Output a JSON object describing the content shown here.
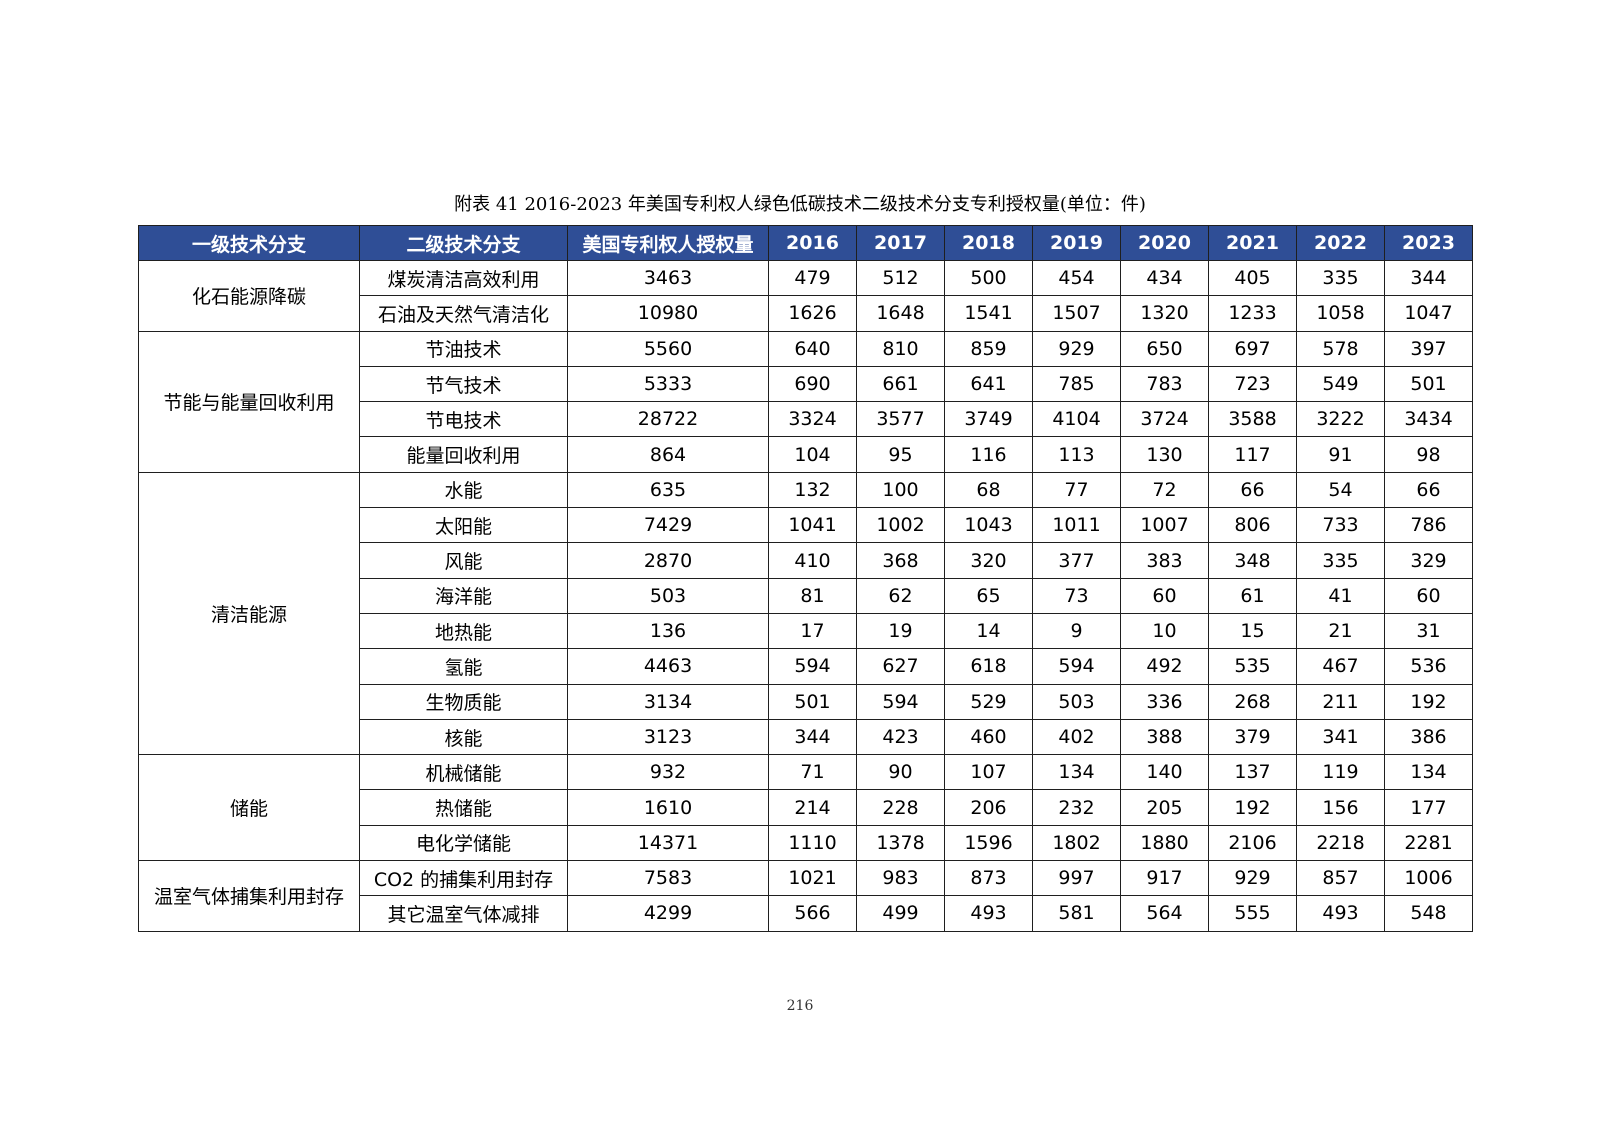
{
  "caption": "附表 41 2016-2023 年美国专利权人绿色低碳技术二级技术分支专利授权量(单位：件)",
  "headers": [
    "一级技术分支",
    "二级技术分支",
    "美国专利权人授权量",
    "2016",
    "2017",
    "2018",
    "2019",
    "2020",
    "2021",
    "2022",
    "2023"
  ],
  "groups": [
    {
      "name": "化石能源降碳",
      "rows": [
        {
          "sub": "煤炭清洁高效利用",
          "values": [
            "3463",
            "479",
            "512",
            "500",
            "454",
            "434",
            "405",
            "335",
            "344"
          ]
        },
        {
          "sub": "石油及天然气清洁化",
          "values": [
            "10980",
            "1626",
            "1648",
            "1541",
            "1507",
            "1320",
            "1233",
            "1058",
            "1047"
          ]
        }
      ]
    },
    {
      "name": "节能与能量回收利用",
      "rows": [
        {
          "sub": "节油技术",
          "values": [
            "5560",
            "640",
            "810",
            "859",
            "929",
            "650",
            "697",
            "578",
            "397"
          ]
        },
        {
          "sub": "节气技术",
          "values": [
            "5333",
            "690",
            "661",
            "641",
            "785",
            "783",
            "723",
            "549",
            "501"
          ]
        },
        {
          "sub": "节电技术",
          "values": [
            "28722",
            "3324",
            "3577",
            "3749",
            "4104",
            "3724",
            "3588",
            "3222",
            "3434"
          ]
        },
        {
          "sub": "能量回收利用",
          "values": [
            "864",
            "104",
            "95",
            "116",
            "113",
            "130",
            "117",
            "91",
            "98"
          ]
        }
      ]
    },
    {
      "name": "清洁能源",
      "rows": [
        {
          "sub": "水能",
          "values": [
            "635",
            "132",
            "100",
            "68",
            "77",
            "72",
            "66",
            "54",
            "66"
          ]
        },
        {
          "sub": "太阳能",
          "values": [
            "7429",
            "1041",
            "1002",
            "1043",
            "1011",
            "1007",
            "806",
            "733",
            "786"
          ]
        },
        {
          "sub": "风能",
          "values": [
            "2870",
            "410",
            "368",
            "320",
            "377",
            "383",
            "348",
            "335",
            "329"
          ]
        },
        {
          "sub": "海洋能",
          "values": [
            "503",
            "81",
            "62",
            "65",
            "73",
            "60",
            "61",
            "41",
            "60"
          ]
        },
        {
          "sub": "地热能",
          "values": [
            "136",
            "17",
            "19",
            "14",
            "9",
            "10",
            "15",
            "21",
            "31"
          ]
        },
        {
          "sub": "氢能",
          "values": [
            "4463",
            "594",
            "627",
            "618",
            "594",
            "492",
            "535",
            "467",
            "536"
          ]
        },
        {
          "sub": "生物质能",
          "values": [
            "3134",
            "501",
            "594",
            "529",
            "503",
            "336",
            "268",
            "211",
            "192"
          ]
        },
        {
          "sub": "核能",
          "values": [
            "3123",
            "344",
            "423",
            "460",
            "402",
            "388",
            "379",
            "341",
            "386"
          ]
        }
      ]
    },
    {
      "name": "储能",
      "rows": [
        {
          "sub": "机械储能",
          "values": [
            "932",
            "71",
            "90",
            "107",
            "134",
            "140",
            "137",
            "119",
            "134"
          ]
        },
        {
          "sub": "热储能",
          "values": [
            "1610",
            "214",
            "228",
            "206",
            "232",
            "205",
            "192",
            "156",
            "177"
          ]
        },
        {
          "sub": "电化学储能",
          "values": [
            "14371",
            "1110",
            "1378",
            "1596",
            "1802",
            "1880",
            "2106",
            "2218",
            "2281"
          ]
        }
      ]
    },
    {
      "name": "温室气体捕集利用封存",
      "rows": [
        {
          "sub": "CO2 的捕集利用封存",
          "values": [
            "7583",
            "1021",
            "983",
            "873",
            "997",
            "917",
            "929",
            "857",
            "1006"
          ]
        },
        {
          "sub": "其它温室气体减排",
          "values": [
            "4299",
            "566",
            "499",
            "493",
            "581",
            "564",
            "555",
            "493",
            "548"
          ]
        }
      ]
    }
  ],
  "page_number": "216",
  "colors": {
    "header_bg": "#2f4e96",
    "header_text": "#ffffff",
    "border": "#1f1f1f"
  }
}
